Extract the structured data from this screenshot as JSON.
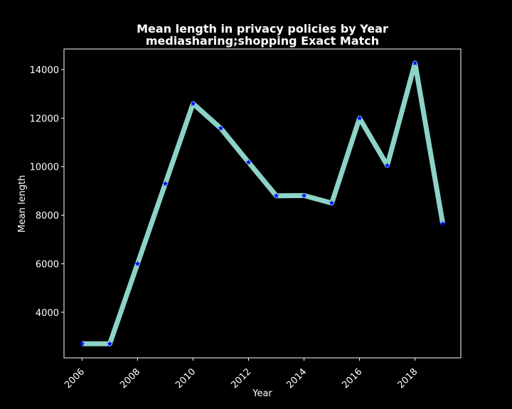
{
  "chart_data": {
    "type": "line",
    "title": "Mean length in privacy policies by Year",
    "subtitle": "mediasharing;shopping Exact Match",
    "xlabel": "Year",
    "ylabel": "Mean length",
    "x": [
      2006,
      2007,
      2008,
      2009,
      2010,
      2011,
      2012,
      2013,
      2014,
      2015,
      2016,
      2017,
      2018,
      2019
    ],
    "series": [
      {
        "name": "Mean length",
        "values": [
          2700,
          2700,
          6000,
          9300,
          12600,
          11580,
          10180,
          8800,
          8810,
          8500,
          12000,
          10050,
          14270,
          7650
        ],
        "line_color": "#8dd3c7",
        "marker_color": "#0000ff",
        "marker": "star"
      }
    ],
    "xlim": [
      2005.35,
      2019.65
    ],
    "ylim": [
      2120,
      14850
    ],
    "xticks": [
      2006,
      2008,
      2010,
      2012,
      2014,
      2016,
      2018
    ],
    "yticks": [
      4000,
      6000,
      8000,
      10000,
      12000,
      14000
    ],
    "grid": false,
    "background": "#000000",
    "text_color": "#ffffff"
  }
}
